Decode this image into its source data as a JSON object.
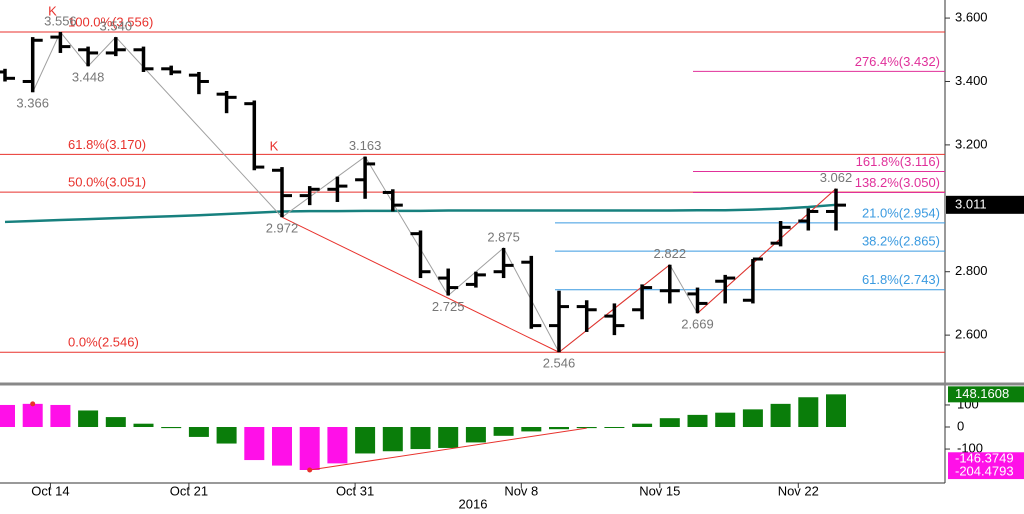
{
  "chart_data": [
    {
      "type": "ohlc",
      "categories": [
        null,
        null,
        "Oct 14",
        null,
        null,
        null,
        null,
        "Oct 21",
        null,
        null,
        null,
        null,
        null,
        "Oct 31",
        null,
        null,
        null,
        null,
        null,
        "Nov 8",
        null,
        null,
        null,
        null,
        "Nov 15",
        null,
        null,
        null,
        null,
        "Nov 22",
        null
      ],
      "x_label": "2016",
      "open": [
        3.43,
        3.4,
        3.54,
        3.5,
        3.49,
        3.5,
        3.44,
        3.42,
        3.36,
        3.33,
        3.12,
        3.04,
        3.06,
        3.09,
        3.05,
        2.92,
        2.78,
        2.76,
        2.8,
        2.83,
        2.63,
        2.69,
        2.66,
        2.68,
        2.74,
        2.73,
        2.77,
        2.71,
        2.89,
        2.96,
        2.99
      ],
      "high": [
        3.44,
        3.54,
        3.556,
        3.51,
        3.54,
        3.51,
        3.45,
        3.43,
        3.37,
        3.34,
        3.13,
        3.07,
        3.1,
        3.163,
        3.06,
        2.93,
        2.81,
        2.8,
        2.875,
        2.85,
        2.74,
        2.71,
        2.7,
        2.76,
        2.822,
        2.75,
        2.79,
        2.84,
        2.96,
        3.0,
        3.062
      ],
      "low": [
        3.4,
        3.366,
        3.49,
        3.448,
        3.48,
        3.43,
        3.42,
        3.36,
        3.3,
        3.12,
        2.972,
        3.01,
        3.02,
        3.03,
        2.99,
        2.78,
        2.725,
        2.75,
        2.78,
        2.62,
        2.546,
        2.61,
        2.6,
        2.65,
        2.7,
        2.669,
        2.7,
        2.7,
        2.88,
        2.93,
        2.93
      ],
      "close": [
        3.41,
        3.53,
        3.51,
        3.49,
        3.5,
        3.44,
        3.43,
        3.4,
        3.35,
        3.13,
        3.04,
        3.06,
        3.07,
        3.14,
        3.01,
        2.8,
        2.75,
        2.79,
        2.82,
        2.63,
        2.69,
        2.68,
        2.63,
        2.75,
        2.74,
        2.7,
        2.78,
        2.84,
        2.94,
        2.99,
        3.01
      ],
      "color": "#000000",
      "ma": {
        "color": "#17807e",
        "values": [
          2.957,
          2.96,
          2.963,
          2.966,
          2.969,
          2.972,
          2.975,
          2.978,
          2.982,
          2.986,
          2.99,
          2.991,
          2.991,
          2.992,
          2.992,
          2.992,
          2.993,
          2.993,
          2.993,
          2.993,
          2.993,
          2.993,
          2.993,
          2.993,
          2.993,
          2.994,
          2.994,
          2.996,
          2.999,
          3.004,
          3.011
        ]
      },
      "last_price": 3.011,
      "ylim": [
        2.449,
        3.657
      ],
      "yticks": [
        {
          "value": 3.6,
          "label": "3.600"
        },
        {
          "value": 3.4,
          "label": "3.400"
        },
        {
          "value": 3.2,
          "label": "3.200"
        },
        {
          "value": 2.8,
          "label": "2.800"
        },
        {
          "value": 2.6,
          "label": "2.600"
        }
      ],
      "fib": [
        {
          "color": "#e8322d",
          "levels": [
            {
              "value": 3.556,
              "label": "100.0%(3.556)"
            },
            {
              "value": 3.17,
              "label": "61.8%(3.170)"
            },
            {
              "value": 3.051,
              "label": "50.0%(3.051)"
            },
            {
              "value": 2.546,
              "label": "0.0%(2.546)"
            }
          ]
        },
        {
          "color": "#e0309a",
          "levels": [
            {
              "value": 3.432,
              "label": "276.4%(3.432)"
            },
            {
              "value": 3.116,
              "label": "161.8%(3.116)"
            },
            {
              "value": 3.05,
              "label": "138.2%(3.050)"
            }
          ]
        },
        {
          "color": "#3a9ae0",
          "levels": [
            {
              "value": 2.954,
              "label": "21.0%(2.954)"
            },
            {
              "value": 2.865,
              "label": "38.2%(2.865)"
            },
            {
              "value": 2.743,
              "label": "61.8%(2.743)"
            }
          ]
        }
      ],
      "swing_labels": [
        null,
        "3.366",
        "3.556",
        "3.448",
        "3.540",
        null,
        null,
        null,
        null,
        null,
        "2.972",
        null,
        null,
        "3.163",
        null,
        null,
        "2.725",
        null,
        "2.875",
        null,
        "2.546",
        null,
        null,
        null,
        "2.822",
        "2.669",
        null,
        null,
        null,
        null,
        "3.062"
      ],
      "zigzag_color": "#a0a0a0",
      "signals": [
        null,
        null,
        "K",
        null,
        null,
        null,
        null,
        null,
        null,
        null,
        "K",
        null,
        null,
        null,
        null,
        null,
        null,
        null,
        null,
        null,
        null,
        null,
        null,
        null,
        null,
        null,
        null,
        null,
        null,
        null,
        null
      ],
      "signal_color": "#e8322d"
    },
    {
      "type": "histogram",
      "values": [
        100,
        105,
        100,
        75,
        45,
        15,
        -5,
        -45,
        -75,
        -150,
        -175,
        -195,
        -165,
        -120,
        -110,
        -100,
        -95,
        -70,
        -40,
        -20,
        -10,
        -5,
        -2,
        15,
        40,
        55,
        65,
        80,
        105,
        135,
        148.1608
      ],
      "colors": [
        "#ff10e8",
        "#ff10e8",
        "#ff10e8",
        "#0a7d0a",
        "#0a7d0a",
        "#0a7d0a",
        "#0a7d0a",
        "#0a7d0a",
        "#0a7d0a",
        "#ff10e8",
        "#ff10e8",
        "#ff10e8",
        "#ff10e8",
        "#0a7d0a",
        "#0a7d0a",
        "#0a7d0a",
        "#0a7d0a",
        "#0a7d0a",
        "#0a7d0a",
        "#0a7d0a",
        "#0a7d0a",
        "#0a7d0a",
        "#0a7d0a",
        "#0a7d0a",
        "#0a7d0a",
        "#0a7d0a",
        "#0a7d0a",
        "#0a7d0a",
        "#0a7d0a",
        "#0a7d0a",
        "#0a7d0a"
      ],
      "readouts": [
        -146.3749,
        -204.4793
      ],
      "readout_color": "#ff10e8",
      "ylim": [
        -254,
        186
      ],
      "yticks": [
        100,
        0,
        -100
      ]
    }
  ]
}
